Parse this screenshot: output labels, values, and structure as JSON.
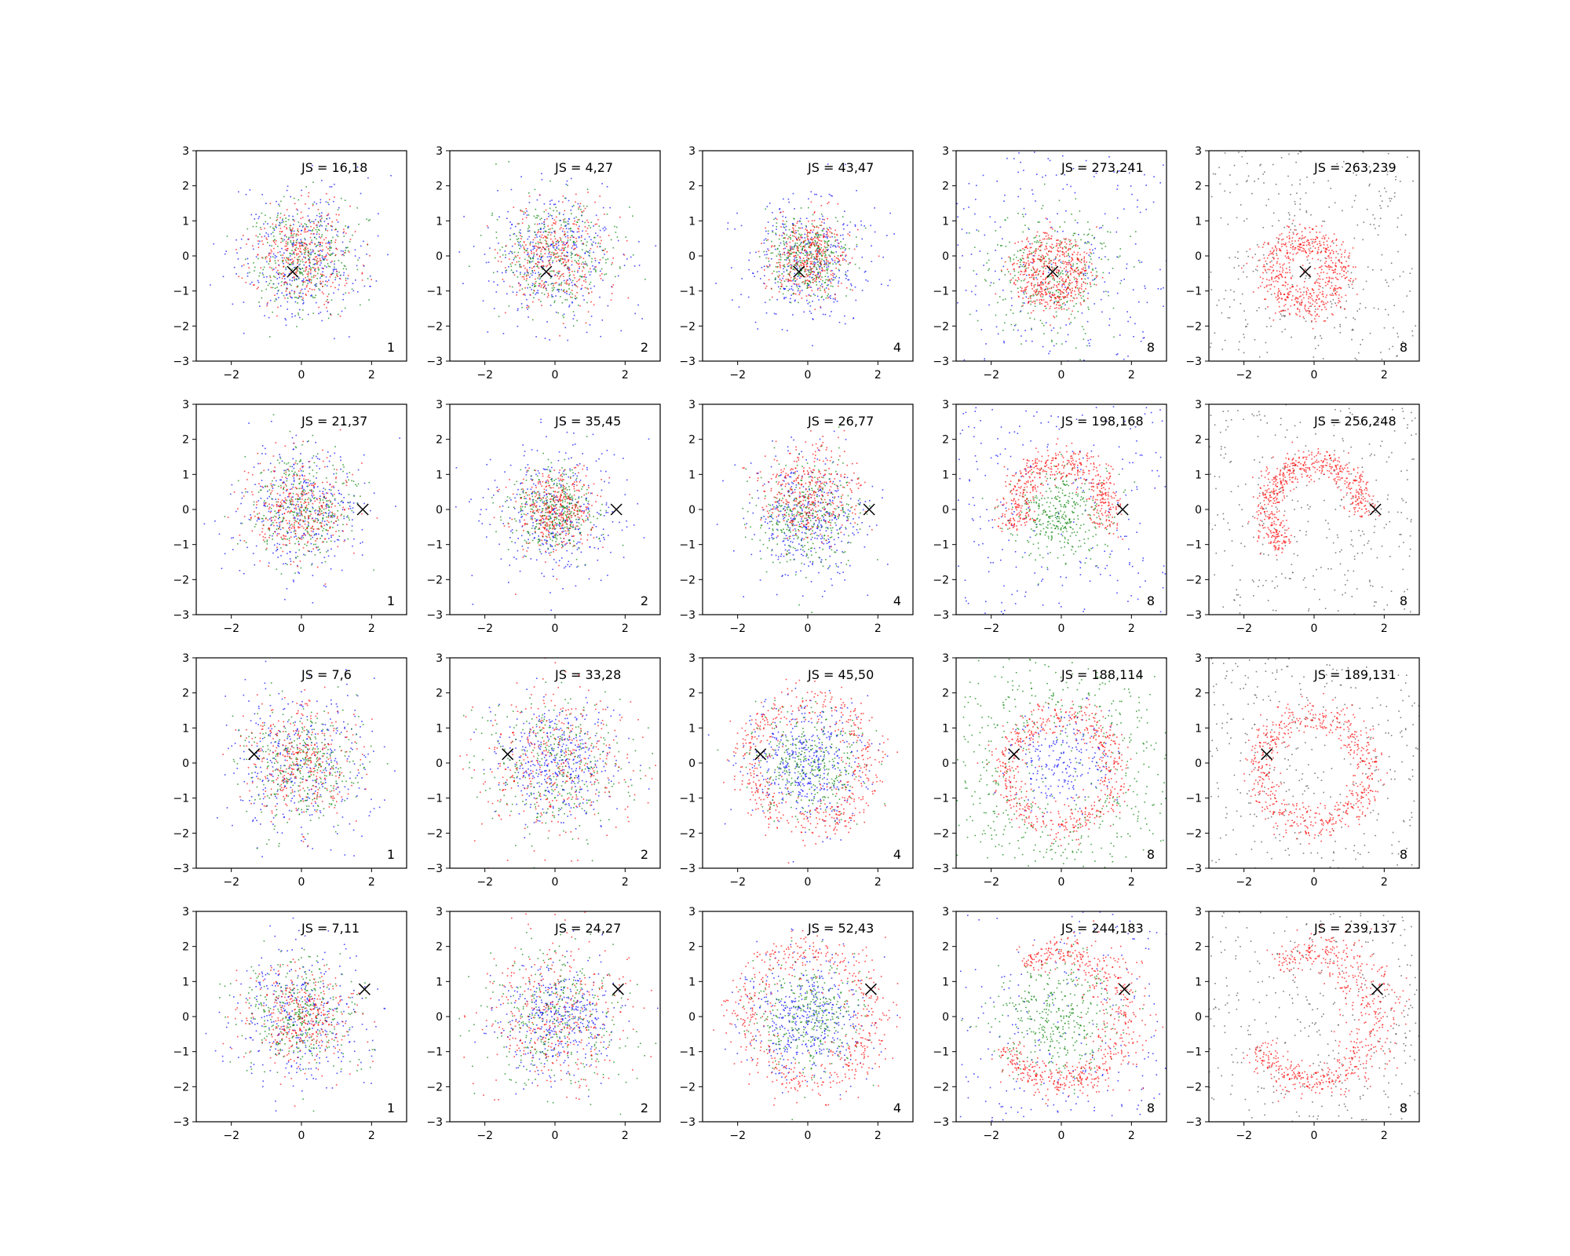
{
  "figure": {
    "rows": 4,
    "cols": 5,
    "xlim": [
      -3,
      3
    ],
    "ylim": [
      -3,
      3
    ],
    "xticks": [
      -2,
      0,
      2
    ],
    "yticks": [
      -3,
      -2,
      -1,
      0,
      1,
      2,
      3
    ],
    "grid": false,
    "colors": {
      "red": "#ff0000",
      "green": "#008000",
      "blue": "#0000ff",
      "gray": "#555555",
      "marker": "#000000"
    }
  },
  "chart_data": [
    {
      "type": "scatter",
      "row": 0,
      "col": 0,
      "js_label": "JS = 16,18",
      "corner_label": "1",
      "marker": [
        -0.25,
        -0.45
      ],
      "pattern": "blob",
      "spread": 0.9
    },
    {
      "type": "scatter",
      "row": 0,
      "col": 1,
      "js_label": "JS = 4,27",
      "corner_label": "2",
      "marker": [
        -0.25,
        -0.45
      ],
      "pattern": "blob",
      "spread": 0.95
    },
    {
      "type": "scatter",
      "row": 0,
      "col": 2,
      "js_label": "JS = 43,47",
      "corner_label": "4",
      "marker": [
        -0.25,
        -0.45
      ],
      "pattern": "blob-tight",
      "spread": 0.8
    },
    {
      "type": "scatter",
      "row": 0,
      "col": 3,
      "js_label": "JS = 273,241",
      "corner_label": "8",
      "marker": [
        -0.25,
        -0.45
      ],
      "pattern": "ring",
      "center": [
        -0.25,
        -0.45
      ],
      "radius": 0.75
    },
    {
      "type": "scatter",
      "row": 0,
      "col": 4,
      "js_label": "JS = 263,239",
      "corner_label": "8",
      "marker": [
        -0.25,
        -0.45
      ],
      "pattern": "ring-gray",
      "center": [
        -0.25,
        -0.45
      ],
      "radius": 0.95
    },
    {
      "type": "scatter",
      "row": 1,
      "col": 0,
      "js_label": "JS = 21,37",
      "corner_label": "1",
      "marker": [
        1.75,
        0.0
      ],
      "pattern": "blob",
      "spread": 0.9
    },
    {
      "type": "scatter",
      "row": 1,
      "col": 1,
      "js_label": "JS = 35,45",
      "corner_label": "2",
      "marker": [
        1.75,
        0.0
      ],
      "pattern": "blob-tight",
      "spread": 0.85
    },
    {
      "type": "scatter",
      "row": 1,
      "col": 2,
      "js_label": "JS = 26,77",
      "corner_label": "4",
      "marker": [
        1.75,
        0.0
      ],
      "pattern": "blob-offset",
      "spread": 0.9
    },
    {
      "type": "scatter",
      "row": 1,
      "col": 3,
      "js_label": "JS = 198,168",
      "corner_label": "8",
      "marker": [
        1.75,
        0.0
      ],
      "pattern": "arc",
      "center": [
        0,
        0
      ],
      "radius": 1.35,
      "gap_angle": 0
    },
    {
      "type": "scatter",
      "row": 1,
      "col": 4,
      "js_label": "JS = 256,248",
      "corner_label": "8",
      "marker": [
        1.75,
        0.0
      ],
      "pattern": "arc-gray",
      "center": [
        0,
        0
      ],
      "radius": 1.35,
      "gap_angle": 0
    },
    {
      "type": "scatter",
      "row": 2,
      "col": 0,
      "js_label": "JS = 7,6",
      "corner_label": "1",
      "marker": [
        -1.35,
        0.25
      ],
      "pattern": "blob",
      "spread": 1.0
    },
    {
      "type": "scatter",
      "row": 2,
      "col": 1,
      "js_label": "JS = 33,28",
      "corner_label": "2",
      "marker": [
        -1.35,
        0.25
      ],
      "pattern": "wide",
      "spread": 1.05
    },
    {
      "type": "scatter",
      "row": 2,
      "col": 2,
      "js_label": "JS = 45,50",
      "corner_label": "4",
      "marker": [
        -1.35,
        0.25
      ],
      "pattern": "wide-ring",
      "radius": 2.0
    },
    {
      "type": "scatter",
      "row": 2,
      "col": 3,
      "js_label": "JS = 188,114",
      "corner_label": "8",
      "marker": [
        -1.35,
        0.25
      ],
      "pattern": "big-ring",
      "center": [
        0,
        -0.2
      ],
      "radius": 1.55
    },
    {
      "type": "scatter",
      "row": 2,
      "col": 4,
      "js_label": "JS = 189,131",
      "corner_label": "8",
      "marker": [
        -1.35,
        0.25
      ],
      "pattern": "big-ring-gray",
      "center": [
        0,
        -0.2
      ],
      "radius": 1.55
    },
    {
      "type": "scatter",
      "row": 3,
      "col": 0,
      "js_label": "JS = 7,11",
      "corner_label": "1",
      "marker": [
        1.8,
        0.78
      ],
      "pattern": "blob",
      "spread": 0.95
    },
    {
      "type": "scatter",
      "row": 3,
      "col": 1,
      "js_label": "JS = 24,27",
      "corner_label": "2",
      "marker": [
        1.8,
        0.78
      ],
      "pattern": "wide",
      "spread": 1.0
    },
    {
      "type": "scatter",
      "row": 3,
      "col": 2,
      "js_label": "JS = 52,43",
      "corner_label": "4",
      "marker": [
        1.8,
        0.78
      ],
      "pattern": "wide-ring",
      "radius": 2.2
    },
    {
      "type": "scatter",
      "row": 3,
      "col": 3,
      "js_label": "JS = 244,183",
      "corner_label": "8",
      "marker": [
        1.8,
        0.78
      ],
      "pattern": "crescent",
      "center": [
        0,
        0
      ],
      "radius": 1.85,
      "gap_angle": 2.8
    },
    {
      "type": "scatter",
      "row": 3,
      "col": 4,
      "js_label": "JS = 239,137",
      "corner_label": "8",
      "marker": [
        1.8,
        0.78
      ],
      "pattern": "crescent-gray",
      "center": [
        0,
        0
      ],
      "radius": 1.85,
      "gap_angle": 2.8
    }
  ]
}
